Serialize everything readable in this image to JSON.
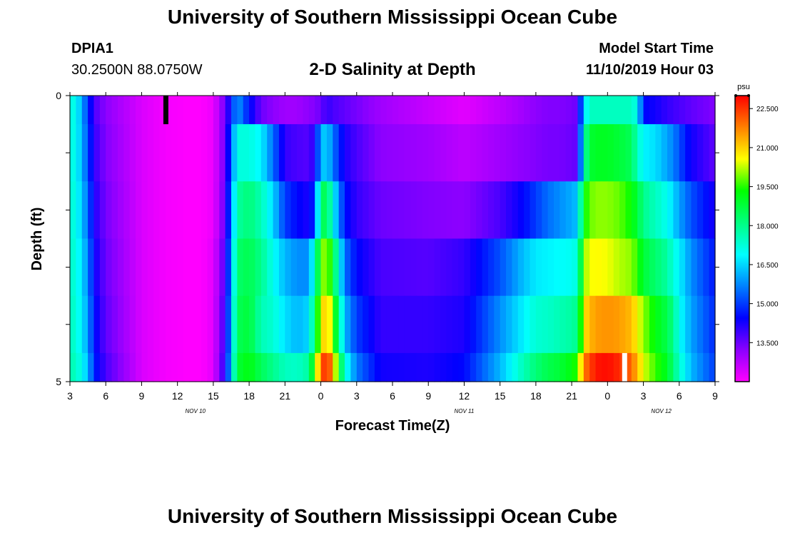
{
  "header": {
    "title": "University of Southern Mississippi Ocean Cube",
    "station_id": "DPIA1",
    "station_coords": "30.2500N 88.0750W",
    "model_start_label": "Model Start Time",
    "model_start_value": "11/10/2019 Hour 03",
    "footer_title": "University of Southern Mississippi Ocean Cube"
  },
  "chart_data": {
    "type": "heatmap",
    "title": "2-D Salinity at Depth",
    "xlabel": "Forecast Time(Z)",
    "ylabel": "Depth (ft)",
    "units": "psu",
    "x_tick_labels": [
      "3",
      "6",
      "9",
      "12",
      "15",
      "18",
      "21",
      "0",
      "3",
      "6",
      "9",
      "12",
      "15",
      "18",
      "21",
      "0",
      "3",
      "6",
      "9"
    ],
    "x_range_hours": [
      0,
      54
    ],
    "y_range_ft": [
      0,
      5
    ],
    "y_tick_labels": [
      "0",
      "5"
    ],
    "date_labels": [
      {
        "text": "NOV 10",
        "hour": 10.5
      },
      {
        "text": "NOV 11",
        "hour": 33
      },
      {
        "text": "NOV 12",
        "hour": 49.5
      }
    ],
    "colorbar": {
      "min": 12.0,
      "max": 23.0,
      "ticks": [
        "13.500",
        "15.000",
        "16.500",
        "18.000",
        "19.500",
        "21.000",
        "22.500"
      ],
      "tick_values": [
        13.5,
        15.0,
        16.5,
        18.0,
        19.5,
        21.0,
        22.5
      ],
      "stops": [
        "#ff00ff",
        "#8b00ff",
        "#0000ff",
        "#0080ff",
        "#00ffff",
        "#00ff80",
        "#00ff00",
        "#ffff00",
        "#ff8000",
        "#ff0000"
      ]
    },
    "depth_bins_ft": [
      0,
      0.5,
      1.5,
      2.5,
      3.5,
      4.5,
      5
    ],
    "keyframes": {
      "hours": [
        0,
        0.5,
        1.5,
        2.0,
        3,
        6,
        8,
        10,
        11,
        12,
        13,
        14,
        15,
        16,
        17,
        18,
        19,
        20,
        20.5,
        21,
        21.5,
        22,
        23,
        24,
        26,
        30,
        33,
        36,
        38,
        39,
        40,
        41,
        42,
        42.5,
        43,
        43.5,
        44,
        45,
        46,
        47,
        47.5,
        48,
        49,
        50,
        50.5,
        51,
        51.5,
        52,
        54
      ],
      "rows": [
        [
          17.2,
          17.0,
          15.0,
          13.8,
          13.2,
          12.4,
          12.1,
          12.0,
          12.0,
          12.2,
          13.5,
          16.0,
          14.6,
          13.5,
          13.2,
          13.0,
          13.0,
          13.2,
          13.3,
          13.5,
          14.0,
          13.8,
          13.6,
          13.4,
          13.0,
          12.6,
          12.3,
          12.7,
          13.0,
          13.2,
          13.3,
          13.3,
          13.4,
          13.5,
          16.5,
          17.5,
          17.5,
          17.5,
          17.5,
          17.5,
          17.0,
          14.5,
          14.3,
          14.0,
          13.9,
          13.8,
          13.7,
          13.6,
          13.3
        ],
        [
          17.2,
          17.0,
          15.2,
          14.0,
          13.3,
          12.4,
          12.1,
          12.0,
          12.0,
          12.2,
          13.5,
          17.2,
          17.2,
          16.8,
          15.5,
          14.0,
          13.8,
          13.7,
          14.2,
          16.2,
          16.5,
          15.6,
          14.2,
          13.8,
          13.2,
          13.0,
          12.7,
          13.0,
          13.2,
          13.3,
          13.4,
          13.4,
          13.5,
          13.6,
          17.5,
          18.8,
          19.0,
          19.0,
          18.8,
          18.5,
          17.5,
          16.8,
          16.6,
          16.0,
          15.7,
          15.2,
          14.7,
          14.3,
          13.6
        ],
        [
          17.3,
          17.1,
          15.5,
          14.2,
          13.4,
          12.4,
          12.1,
          12.0,
          12.0,
          12.2,
          13.6,
          17.8,
          18.2,
          17.6,
          16.5,
          15.0,
          14.5,
          14.2,
          15.0,
          18.4,
          18.6,
          17.0,
          14.6,
          14.0,
          13.5,
          13.3,
          13.2,
          13.8,
          14.5,
          15.0,
          15.5,
          15.8,
          16.1,
          16.3,
          19.2,
          19.8,
          20.0,
          20.0,
          19.8,
          19.3,
          18.8,
          18.0,
          17.5,
          17.0,
          16.5,
          16.0,
          15.6,
          15.2,
          14.2
        ],
        [
          17.4,
          17.2,
          15.8,
          14.4,
          13.5,
          12.4,
          12.1,
          12.0,
          12.0,
          12.3,
          13.8,
          18.3,
          18.6,
          18.0,
          17.0,
          16.2,
          15.8,
          15.8,
          17.5,
          19.6,
          20.3,
          18.8,
          15.5,
          14.5,
          13.8,
          13.7,
          14.0,
          15.2,
          16.3,
          16.7,
          16.8,
          16.9,
          17.0,
          17.2,
          20.0,
          20.5,
          20.6,
          20.5,
          20.2,
          20.0,
          19.5,
          18.8,
          18.3,
          17.8,
          17.2,
          16.8,
          16.3,
          15.8,
          14.6
        ],
        [
          17.5,
          17.3,
          16.0,
          14.6,
          13.6,
          12.4,
          12.1,
          12.0,
          12.0,
          12.3,
          14.0,
          18.5,
          18.8,
          17.6,
          17.3,
          16.6,
          16.2,
          16.5,
          18.5,
          20.5,
          21.3,
          19.8,
          16.2,
          15.0,
          14.0,
          14.0,
          14.2,
          15.8,
          16.8,
          17.3,
          17.4,
          17.6,
          17.8,
          18.0,
          20.8,
          21.2,
          21.5,
          21.6,
          21.5,
          21.2,
          20.6,
          20.0,
          19.2,
          18.6,
          18.0,
          17.0,
          16.5,
          16.0,
          14.8
        ],
        [
          17.6,
          17.5,
          16.3,
          14.8,
          13.8,
          12.4,
          12.1,
          12.0,
          12.0,
          12.3,
          14.2,
          18.8,
          19.2,
          18.5,
          18.0,
          17.5,
          17.4,
          17.8,
          19.8,
          21.8,
          23.0,
          21.2,
          17.2,
          15.6,
          14.3,
          14.2,
          14.5,
          16.2,
          17.6,
          18.2,
          18.6,
          18.8,
          19.2,
          19.6,
          21.8,
          22.3,
          22.8,
          22.9,
          22.6,
          22.0,
          21.2,
          20.4,
          19.6,
          19.0,
          18.2,
          17.4,
          16.8,
          16.2,
          15.0
        ]
      ]
    },
    "missing_markers": [
      {
        "row": 0,
        "hour": 8.0,
        "color": "#000000"
      },
      {
        "row": 5,
        "hour": 46.4,
        "color": "#ffffff"
      }
    ]
  }
}
